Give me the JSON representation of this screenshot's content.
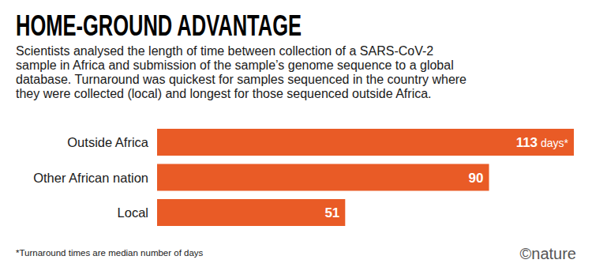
{
  "chart_data": {
    "type": "bar",
    "orientation": "horizontal",
    "title": "HOME-GROUND ADVANTAGE",
    "subtitle": [
      "Scientists analysed the length of time between collection of a SARS-CoV-2",
      "sample in Africa and submission of the sample’s genome sequence to a global",
      "database. Turnaround was quickest for samples sequenced in the country where",
      "they were collected (local) and longest for those sequenced outside Africa."
    ],
    "categories": [
      "Outside Africa",
      "Other African nation",
      "Local"
    ],
    "values": [
      113,
      90,
      51
    ],
    "value_labels": [
      "113 days*",
      "90",
      "51"
    ],
    "data_labels": true,
    "color": "#e95b26",
    "xlim": [
      0,
      113
    ],
    "tick_labels": false,
    "grid": false,
    "footnote": "*Turnaround times are median number of days",
    "credit": "©nature"
  }
}
